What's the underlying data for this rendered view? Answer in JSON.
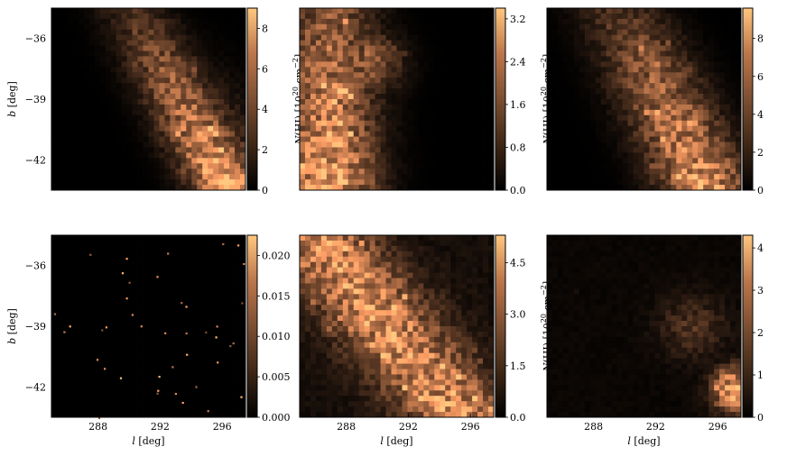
{
  "chart_data": [
    {
      "type": "heatmap",
      "panel": "top-left",
      "xlabel": "",
      "ylabel": "$b$ [deg]",
      "xlim": [
        285,
        297.5
      ],
      "ylim": [
        -43.5,
        -34.5
      ],
      "xticks": [],
      "yticks": [
        -36,
        -39,
        -42
      ],
      "ytick_labels": [
        "−36",
        "−39",
        "−42"
      ],
      "colorbar": {
        "label": "N(HI) [10^20 cm^-2]",
        "range": [
          0,
          9.0
        ],
        "ticks": [
          0,
          2,
          4,
          6,
          8
        ],
        "tick_labels": [
          "0",
          "2",
          "4",
          "6",
          "8"
        ]
      },
      "colormap": "copper",
      "emission_pattern": "diagonal band from upper center to lower right, brightest near l≈294–297, b≈-41 to -43"
    },
    {
      "type": "heatmap",
      "panel": "top-middle",
      "xlabel": "",
      "ylabel": "",
      "xlim": [
        285,
        297.5
      ],
      "ylim": [
        -43.5,
        -34.5
      ],
      "xticks": [],
      "yticks": [],
      "colorbar": {
        "label": "N(HI) [10^20 cm^-2]",
        "range": [
          0,
          3.4
        ],
        "ticks": [
          0.0,
          0.8,
          1.6,
          2.4,
          3.2
        ],
        "tick_labels": [
          "0.0",
          "0.8",
          "1.6",
          "2.4",
          "3.2"
        ]
      },
      "colormap": "copper",
      "emission_pattern": "left side and lower-left, brightest near l≈286–289"
    },
    {
      "type": "heatmap",
      "panel": "top-right",
      "xlabel": "",
      "ylabel": "",
      "xlim": [
        285,
        297.5
      ],
      "ylim": [
        -43.5,
        -34.5
      ],
      "xticks": [],
      "yticks": [],
      "colorbar": {
        "label": "N(HI) [10^20 cm^-2]",
        "range": [
          0,
          9.6
        ],
        "ticks": [
          0,
          2,
          4,
          6,
          8
        ],
        "tick_labels": [
          "0",
          "2",
          "4",
          "6",
          "8"
        ]
      },
      "colormap": "copper",
      "emission_pattern": "diagonal band from upper center to lower right"
    },
    {
      "type": "heatmap",
      "panel": "bottom-left",
      "xlabel": "$l$ [deg]",
      "ylabel": "$b$ [deg]",
      "xlim": [
        285,
        297.5
      ],
      "ylim": [
        -43.5,
        -34.5
      ],
      "xticks": [
        288,
        292,
        296
      ],
      "yticks": [
        -36,
        -39,
        -42
      ],
      "ytick_labels": [
        "−36",
        "−39",
        "−42"
      ],
      "colorbar": {
        "label": "",
        "range": [
          0,
          0.0225
        ],
        "ticks": [
          0.0,
          0.005,
          0.01,
          0.015,
          0.02
        ],
        "tick_labels": [
          "0.000",
          "0.005",
          "0.010",
          "0.015",
          "0.020"
        ]
      },
      "colormap": "copper",
      "emission_pattern": "sparse isolated point sources on dark background"
    },
    {
      "type": "heatmap",
      "panel": "bottom-middle",
      "xlabel": "$l$ [deg]",
      "ylabel": "",
      "xlim": [
        285,
        297.5
      ],
      "ylim": [
        -43.5,
        -34.5
      ],
      "xticks": [
        288,
        292,
        296
      ],
      "yticks": [],
      "colorbar": {
        "label": "N(HI) [10^20 cm^-2]",
        "range": [
          0,
          5.3
        ],
        "ticks": [
          0.0,
          1.5,
          3.0,
          4.5
        ],
        "tick_labels": [
          "0.0",
          "1.5",
          "3.0",
          "4.5"
        ]
      },
      "colormap": "copper",
      "emission_pattern": "broad diagonal band from upper left to lower right"
    },
    {
      "type": "heatmap",
      "panel": "bottom-right",
      "xlabel": "$l$ [deg]",
      "ylabel": "",
      "xlim": [
        285,
        297.5
      ],
      "ylim": [
        -43.5,
        -34.5
      ],
      "xticks": [
        288,
        292,
        296
      ],
      "yticks": [],
      "colorbar": {
        "label": "N(HI) [10^20 cm^-2]",
        "range": [
          0,
          4.3
        ],
        "ticks": [
          0,
          1,
          2,
          3,
          4
        ],
        "tick_labels": [
          "0",
          "1",
          "2",
          "3",
          "4"
        ]
      },
      "colormap": "copper",
      "emission_pattern": "mostly dark, emission concentrated at lower right corner"
    }
  ]
}
